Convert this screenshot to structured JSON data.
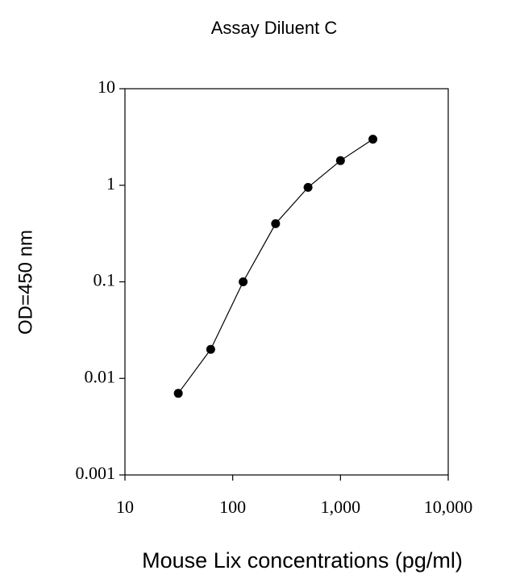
{
  "chart_data": {
    "type": "line",
    "title": "Assay Diluent C",
    "x_label": "Mouse Lix concentrations (pg/ml)",
    "y_label": "OD=450 nm",
    "x": [
      31.25,
      62.5,
      125,
      250,
      500,
      1000,
      2000
    ],
    "values": [
      0.007,
      0.02,
      0.1,
      0.4,
      0.95,
      1.8,
      3.0
    ],
    "color": "#000000",
    "markers": true,
    "xscale": "log",
    "yscale": "log",
    "xlim": [
      10,
      10000
    ],
    "ylim": [
      0.001,
      10
    ],
    "xticks": [
      10,
      100,
      {
        "value": 1000,
        "label": "1,000"
      },
      {
        "value": 10000,
        "label": "10,000"
      }
    ],
    "yticks": [
      0.001,
      0.01,
      0.1,
      1,
      10
    ]
  }
}
